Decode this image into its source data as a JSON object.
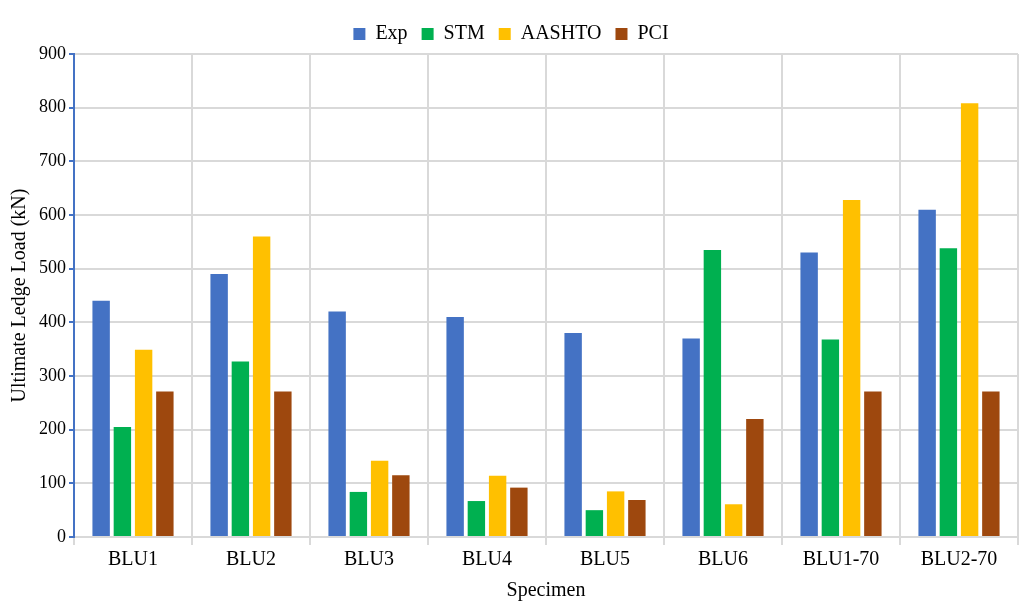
{
  "chart_data": {
    "type": "bar",
    "xlabel": "Specimen",
    "ylabel": "Ultimate Ledge Load (kN)",
    "categories": [
      "BLU1",
      "BLU2",
      "BLU3",
      "BLU4",
      "BLU5",
      "BLU6",
      "BLU1-70",
      "BLU2-70"
    ],
    "series": [
      {
        "name": "Exp",
        "color": "#4472c4",
        "values": [
          440,
          490,
          420,
          410,
          380,
          370,
          530,
          610
        ]
      },
      {
        "name": "STM",
        "color": "#00b050",
        "values": [
          205,
          327,
          84,
          67,
          50,
          535,
          368,
          538
        ]
      },
      {
        "name": "AASHTO",
        "color": "#ffc000",
        "values": [
          349,
          560,
          142,
          114,
          85,
          61,
          628,
          808
        ]
      },
      {
        "name": "PCI",
        "color": "#9e480e",
        "values": [
          271,
          271,
          115,
          92,
          69,
          220,
          271,
          271
        ]
      }
    ],
    "ylim": [
      0,
      900
    ],
    "yticks": [
      0,
      100,
      200,
      300,
      400,
      500,
      600,
      700,
      800,
      900
    ],
    "grid": true,
    "legend": "top"
  }
}
